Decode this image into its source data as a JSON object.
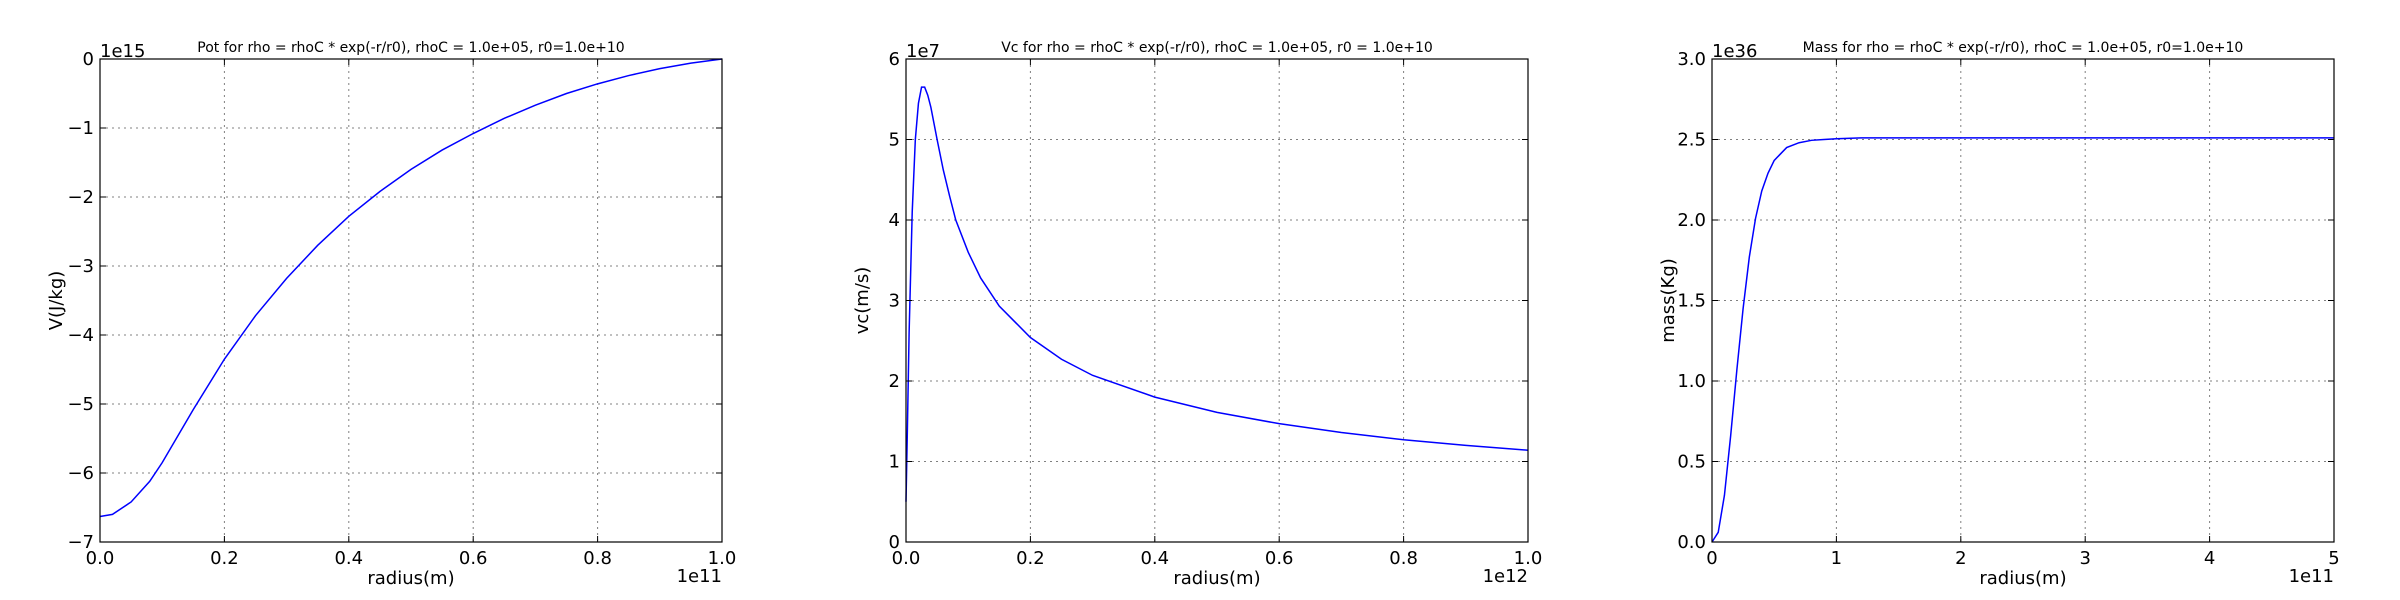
{
  "chart_data": [
    {
      "type": "line",
      "title": "Pot for rho = rhoC * exp(-r/r0), rhoC = 1.0e+05, r0=1.0e+10",
      "xlabel": "radius(m)",
      "ylabel": "V(J/kg)",
      "x_offset_label": "1e11",
      "y_offset_label": "1e15",
      "xlim": [
        0.0,
        1.0
      ],
      "ylim": [
        -7,
        0
      ],
      "xticks": [
        0.0,
        0.2,
        0.4,
        0.6,
        0.8,
        1.0
      ],
      "xtick_labels": [
        "0.0",
        "0.2",
        "0.4",
        "0.6",
        "0.8",
        "1.0"
      ],
      "yticks": [
        -7,
        -6,
        -5,
        -4,
        -3,
        -2,
        -1,
        0
      ],
      "ytick_labels": [
        "−7",
        "−6",
        "−5",
        "−4",
        "−3",
        "−2",
        "−1",
        "0"
      ],
      "grid": true,
      "color": "#0000ff",
      "series": [
        {
          "x": [
            0.0,
            0.02,
            0.05,
            0.08,
            0.1,
            0.15,
            0.2,
            0.25,
            0.3,
            0.35,
            0.4,
            0.45,
            0.5,
            0.55,
            0.6,
            0.65,
            0.7,
            0.75,
            0.8,
            0.85,
            0.9,
            0.95,
            1.0
          ],
          "values": [
            -6.63,
            -6.6,
            -6.42,
            -6.12,
            -5.85,
            -5.08,
            -4.35,
            -3.72,
            -3.18,
            -2.7,
            -2.28,
            -1.92,
            -1.6,
            -1.32,
            -1.08,
            -0.86,
            -0.67,
            -0.5,
            -0.36,
            -0.24,
            -0.14,
            -0.06,
            0.0
          ]
        }
      ]
    },
    {
      "type": "line",
      "title": "Vc for rho = rhoC * exp(-r/r0), rhoC = 1.0e+05, r0 = 1.0e+10",
      "xlabel": "radius(m)",
      "ylabel": "vc(m/s)",
      "x_offset_label": "1e12",
      "y_offset_label": "1e7",
      "xlim": [
        0.0,
        1.0
      ],
      "ylim": [
        0,
        6
      ],
      "xticks": [
        0.0,
        0.2,
        0.4,
        0.6,
        0.8,
        1.0
      ],
      "xtick_labels": [
        "0.0",
        "0.2",
        "0.4",
        "0.6",
        "0.8",
        "1.0"
      ],
      "yticks": [
        0,
        1,
        2,
        3,
        4,
        5,
        6
      ],
      "ytick_labels": [
        "0",
        "1",
        "2",
        "3",
        "4",
        "5",
        "6"
      ],
      "grid": true,
      "color": "#0000ff",
      "series": [
        {
          "x": [
            0.0,
            0.002,
            0.005,
            0.01,
            0.015,
            0.02,
            0.025,
            0.03,
            0.035,
            0.04,
            0.05,
            0.06,
            0.07,
            0.08,
            0.1,
            0.12,
            0.15,
            0.2,
            0.25,
            0.3,
            0.4,
            0.5,
            0.6,
            0.7,
            0.8,
            0.9,
            1.0
          ],
          "values": [
            0.5,
            1.3,
            2.6,
            4.1,
            5.0,
            5.45,
            5.65,
            5.65,
            5.55,
            5.4,
            5.0,
            4.62,
            4.3,
            4.0,
            3.6,
            3.28,
            2.93,
            2.54,
            2.27,
            2.07,
            1.8,
            1.61,
            1.47,
            1.36,
            1.27,
            1.2,
            1.14
          ]
        }
      ]
    },
    {
      "type": "line",
      "title": "Mass for rho = rhoC * exp(-r/r0), rhoC = 1.0e+05, r0=1.0e+10",
      "xlabel": "radius(m)",
      "ylabel": "mass(Kg)",
      "x_offset_label": "1e11",
      "y_offset_label": "1e36",
      "xlim": [
        0,
        5
      ],
      "ylim": [
        0.0,
        3.0
      ],
      "xticks": [
        0,
        1,
        2,
        3,
        4,
        5
      ],
      "xtick_labels": [
        "0",
        "1",
        "2",
        "3",
        "4",
        "5"
      ],
      "yticks": [
        0.0,
        0.5,
        1.0,
        1.5,
        2.0,
        2.5,
        3.0
      ],
      "ytick_labels": [
        "0.0",
        "0.5",
        "1.0",
        "1.5",
        "2.0",
        "2.5",
        "3.0"
      ],
      "grid": true,
      "color": "#0000ff",
      "series": [
        {
          "x": [
            0.0,
            0.05,
            0.1,
            0.15,
            0.2,
            0.25,
            0.3,
            0.35,
            0.4,
            0.45,
            0.5,
            0.6,
            0.7,
            0.8,
            0.9,
            1.0,
            1.2,
            1.5,
            2.0,
            3.0,
            4.0,
            5.0
          ],
          "values": [
            0.0,
            0.06,
            0.29,
            0.66,
            1.07,
            1.45,
            1.77,
            2.01,
            2.18,
            2.29,
            2.37,
            2.45,
            2.48,
            2.495,
            2.5,
            2.505,
            2.51,
            2.51,
            2.51,
            2.51,
            2.51,
            2.51
          ]
        }
      ]
    }
  ]
}
